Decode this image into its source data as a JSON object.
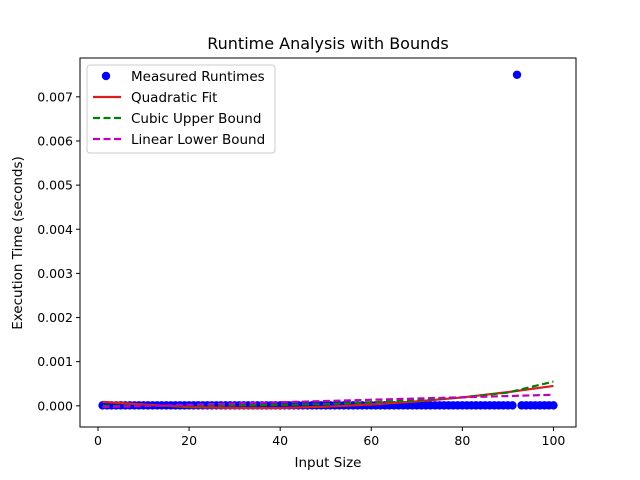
{
  "chart_data": {
    "type": "scatter",
    "title": "Runtime Analysis with Bounds",
    "xlabel": "Input Size",
    "ylabel": "Execution Time (seconds)",
    "xlim": [
      -3.95,
      104.95
    ],
    "ylim": [
      -0.00048,
      0.00788
    ],
    "xticks": [
      0,
      20,
      40,
      60,
      80,
      100
    ],
    "xtick_labels": [
      "0",
      "20",
      "40",
      "60",
      "80",
      "100"
    ],
    "yticks": [
      0.0,
      0.001,
      0.002,
      0.003,
      0.004,
      0.005,
      0.006,
      0.007
    ],
    "ytick_labels": [
      "0.000",
      "0.001",
      "0.002",
      "0.003",
      "0.004",
      "0.005",
      "0.006",
      "0.007"
    ],
    "grid": false,
    "legend_position": "top-left",
    "series": [
      {
        "name": "Measured Runtimes",
        "kind": "scatter",
        "color": "#0000ff",
        "x": [
          1,
          2,
          3,
          4,
          5,
          6,
          7,
          8,
          9,
          10,
          11,
          12,
          13,
          14,
          15,
          16,
          17,
          18,
          19,
          20,
          21,
          22,
          23,
          24,
          25,
          26,
          27,
          28,
          29,
          30,
          31,
          32,
          33,
          34,
          35,
          36,
          37,
          38,
          39,
          40,
          41,
          42,
          43,
          44,
          45,
          46,
          47,
          48,
          49,
          50,
          51,
          52,
          53,
          54,
          55,
          56,
          57,
          58,
          59,
          60,
          61,
          62,
          63,
          64,
          65,
          66,
          67,
          68,
          69,
          70,
          71,
          72,
          73,
          74,
          75,
          76,
          77,
          78,
          79,
          80,
          81,
          82,
          83,
          84,
          85,
          86,
          87,
          88,
          89,
          90,
          91,
          92,
          93,
          94,
          95,
          96,
          97,
          98,
          99,
          100
        ],
        "y": [
          1e-05,
          1e-05,
          1e-05,
          1e-05,
          1e-05,
          1e-05,
          1e-05,
          1e-05,
          1e-05,
          1e-05,
          1e-05,
          1e-05,
          1e-05,
          1e-05,
          1e-05,
          1e-05,
          1e-05,
          1e-05,
          1e-05,
          1e-05,
          1e-05,
          1e-05,
          1e-05,
          1e-05,
          1e-05,
          1e-05,
          1e-05,
          1e-05,
          1e-05,
          1e-05,
          1e-05,
          1e-05,
          1e-05,
          1e-05,
          1e-05,
          1e-05,
          1e-05,
          1e-05,
          1e-05,
          1e-05,
          1e-05,
          1e-05,
          1e-05,
          1e-05,
          1e-05,
          1e-05,
          1e-05,
          1e-05,
          1e-05,
          1e-05,
          1e-05,
          1e-05,
          1e-05,
          1e-05,
          1e-05,
          1e-05,
          1e-05,
          1e-05,
          1e-05,
          1e-05,
          1e-05,
          1e-05,
          1e-05,
          1e-05,
          1e-05,
          1e-05,
          1e-05,
          1e-05,
          1e-05,
          1e-05,
          1e-05,
          1e-05,
          1e-05,
          1e-05,
          1e-05,
          1e-05,
          1e-05,
          1e-05,
          1e-05,
          1e-05,
          1e-05,
          1e-05,
          1e-05,
          1e-05,
          1e-05,
          1e-05,
          1e-05,
          1e-05,
          1e-05,
          1e-05,
          1e-05,
          0.0075,
          1e-05,
          1e-05,
          1e-05,
          1e-05,
          1e-05,
          1e-05,
          1e-05,
          1e-05
        ]
      },
      {
        "name": "Quadratic Fit",
        "kind": "line",
        "color": "#dd1c1c",
        "dash": "solid",
        "x": [
          1,
          10,
          20,
          30,
          40,
          50,
          60,
          70,
          80,
          90,
          100
        ],
        "y": [
          9e-05,
          3e-05,
          -3e-05,
          -5e-05,
          -5e-05,
          -2e-05,
          3e-05,
          0.0001,
          0.00019,
          0.00031,
          0.00045
        ]
      },
      {
        "name": "Cubic Upper Bound",
        "kind": "line",
        "color": "#008000",
        "dash": "dashed",
        "x": [
          1,
          10,
          20,
          30,
          40,
          50,
          60,
          70,
          80,
          90,
          100
        ],
        "y": [
          0.0,
          0.0,
          0.0,
          1e-05,
          2e-05,
          4e-05,
          8e-05,
          0.00013,
          0.00019,
          0.0003,
          0.00055
        ]
      },
      {
        "name": "Linear Lower Bound",
        "kind": "line",
        "color": "#bf00bf",
        "dash": "dashed",
        "x": [
          1,
          100
        ],
        "y": [
          -3e-05,
          0.00025
        ]
      }
    ]
  }
}
